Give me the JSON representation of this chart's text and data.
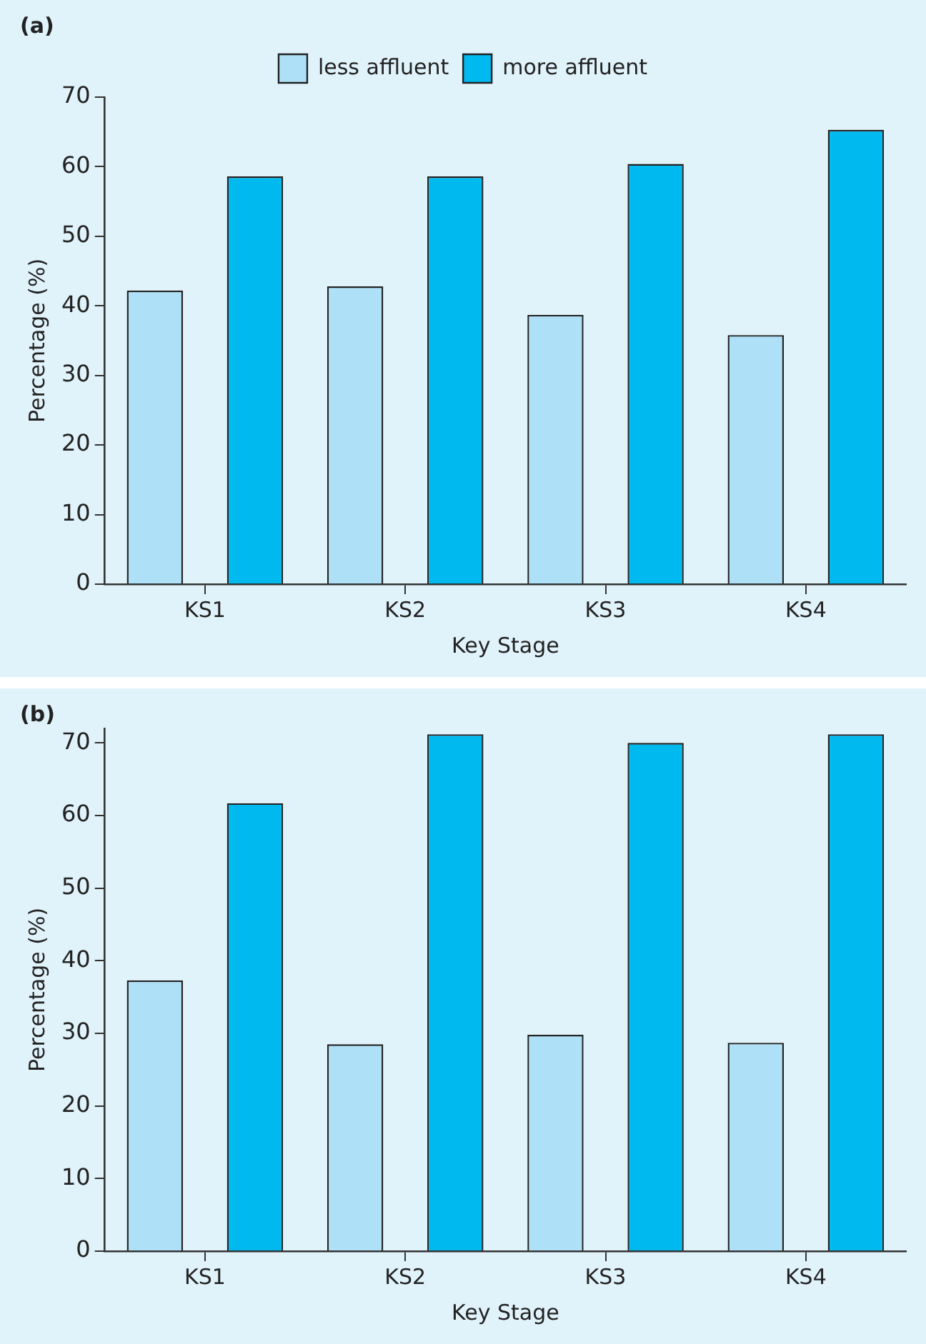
{
  "chart_data": [
    {
      "type": "bar",
      "title": "(a)",
      "xlabel": "Key Stage",
      "ylabel": "Percentage (%)",
      "categories": [
        "KS1",
        "KS2",
        "KS3",
        "KS4"
      ],
      "series": [
        {
          "name": "less affluent",
          "color": "#aee0f8",
          "values": [
            42.2,
            42.8,
            38.7,
            35.8
          ]
        },
        {
          "name": "more affluent",
          "color": "#00b9ef",
          "values": [
            58.6,
            58.6,
            60.4,
            65.3
          ]
        }
      ],
      "ylim": [
        0,
        70
      ],
      "yticks": [
        0,
        10,
        20,
        30,
        40,
        50,
        60,
        70
      ],
      "grid": false,
      "legend": "top"
    },
    {
      "type": "bar",
      "title": "(b)",
      "xlabel": "Key Stage",
      "ylabel": "Percentage (%)",
      "categories": [
        "KS1",
        "KS2",
        "KS3",
        "KS4"
      ],
      "series": [
        {
          "color": "#aee0f8",
          "values": [
            37.3,
            28.5,
            29.8,
            28.7
          ]
        },
        {
          "color": "#00b9ef",
          "values": [
            61.7,
            71.2,
            70.0,
            71.2
          ]
        }
      ],
      "ylim": [
        0,
        72
      ],
      "yticks": [
        0,
        10,
        20,
        30,
        40,
        50,
        60,
        70
      ],
      "grid": false,
      "legend": false
    }
  ]
}
